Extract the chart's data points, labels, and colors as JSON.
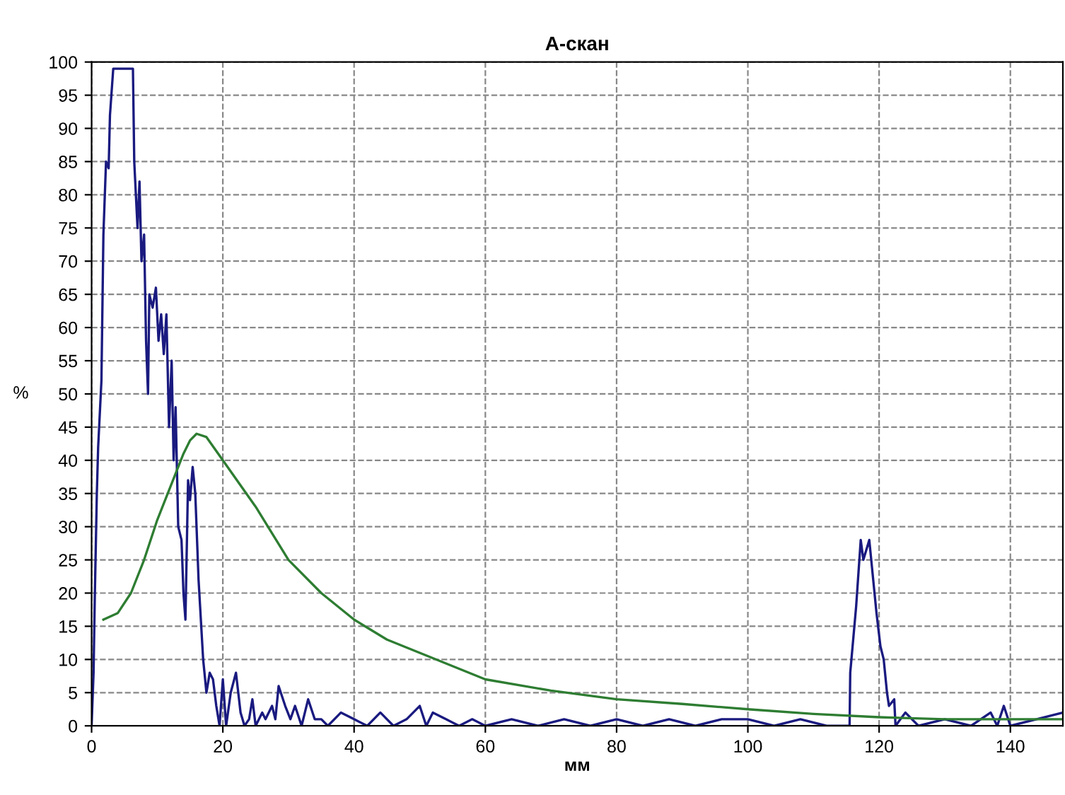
{
  "chart_data": {
    "type": "line",
    "title": "А-скан",
    "xlabel": "мм",
    "ylabel": "%",
    "xlim": [
      0,
      148
    ],
    "ylim": [
      0,
      100
    ],
    "xticks": [
      0,
      20,
      40,
      60,
      80,
      100,
      120,
      140
    ],
    "yticks": [
      0,
      5,
      10,
      15,
      20,
      25,
      30,
      35,
      40,
      45,
      50,
      55,
      60,
      65,
      70,
      75,
      80,
      85,
      90,
      95,
      100
    ],
    "grid": true,
    "line_style": "solid",
    "legend": false,
    "series": [
      {
        "color": "#1a1a80",
        "x": [
          0,
          0.3,
          0.5,
          0.8,
          1,
          1.5,
          1.8,
          2.2,
          2.6,
          2.8,
          3.3,
          6.3,
          6.5,
          7,
          7.3,
          7.6,
          8,
          8.3,
          8.6,
          8.8,
          9.3,
          9.8,
          10.2,
          10.6,
          11,
          11.4,
          11.8,
          12.2,
          12.5,
          12.8,
          13.2,
          13.7,
          14,
          14.3,
          14.7,
          15,
          15.4,
          15.8,
          16.3,
          17,
          17.5,
          18,
          18.5,
          19,
          19.5,
          20,
          20.5,
          21.2,
          22,
          22.7,
          23.3,
          24,
          24.5,
          25,
          26,
          26.5,
          27.5,
          28,
          28.5,
          29.5,
          30.3,
          31,
          32,
          33,
          34,
          35,
          36,
          38,
          40,
          42,
          44,
          46,
          48,
          50,
          51,
          52,
          54,
          56,
          58,
          60,
          64,
          68,
          72,
          76,
          80,
          84,
          88,
          92,
          96,
          100,
          104,
          108,
          112,
          115.5,
          115.6,
          116.5,
          117.2,
          117.6,
          118.5,
          119,
          119.6,
          120.2,
          120.7,
          121.2,
          121.5,
          122.3,
          122.5,
          124,
          126,
          130,
          134,
          137,
          138,
          139,
          140,
          144,
          148
        ],
        "values": [
          0,
          8,
          20,
          35,
          42,
          52,
          74,
          85,
          84,
          92,
          99,
          99,
          85,
          75,
          82,
          70,
          74,
          58,
          50,
          65,
          63,
          66,
          58,
          62,
          56,
          62,
          45,
          55,
          40,
          48,
          30,
          28,
          20,
          16,
          37,
          34,
          39,
          35,
          22,
          10,
          5,
          8,
          7,
          3,
          0,
          7,
          0,
          5,
          8,
          2,
          0,
          1,
          4,
          0,
          2,
          1,
          3,
          1,
          6,
          3,
          1,
          3,
          0,
          4,
          1,
          1,
          0,
          2,
          1,
          0,
          2,
          0,
          1,
          3,
          0,
          2,
          1,
          0,
          1,
          0,
          1,
          0,
          1,
          0,
          1,
          0,
          1,
          0,
          1,
          1,
          0,
          1,
          0,
          0,
          8,
          18,
          28,
          25,
          28,
          23,
          17,
          12,
          10,
          5,
          3,
          4,
          0,
          2,
          0,
          1,
          0,
          2,
          0,
          3,
          0,
          1,
          2
        ]
      },
      {
        "color": "#2e7d32",
        "x": [
          1.8,
          4,
          6,
          8,
          10,
          12,
          14,
          15,
          16,
          17.5,
          20,
          25,
          30,
          35,
          40,
          45,
          50,
          60,
          70,
          80,
          90,
          100,
          110,
          120,
          130,
          148
        ],
        "values": [
          16,
          17,
          20,
          25,
          31,
          36,
          41,
          43,
          44,
          43.5,
          40,
          33,
          25,
          20,
          16,
          13,
          11,
          7,
          5.3,
          4,
          3.3,
          2.5,
          1.8,
          1.3,
          1,
          1
        ]
      }
    ]
  }
}
